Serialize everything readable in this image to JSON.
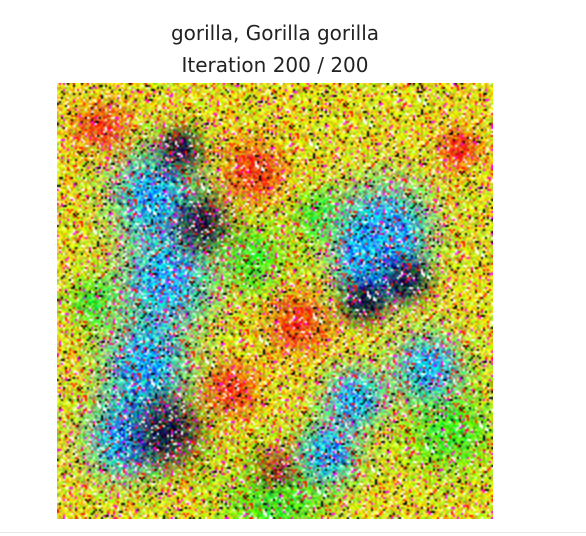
{
  "figure": {
    "title_line1": "gorilla, Gorilla gorilla",
    "title_line2": "Iteration 200 / 200"
  },
  "image": {
    "description_tag": "class-visualization-noise",
    "palette": [
      "#ffff00",
      "#80ff00",
      "#00ff40",
      "#ff2000",
      "#00ffff",
      "#2040ff",
      "#000000",
      "#ffffff",
      "#ff00ff"
    ]
  }
}
